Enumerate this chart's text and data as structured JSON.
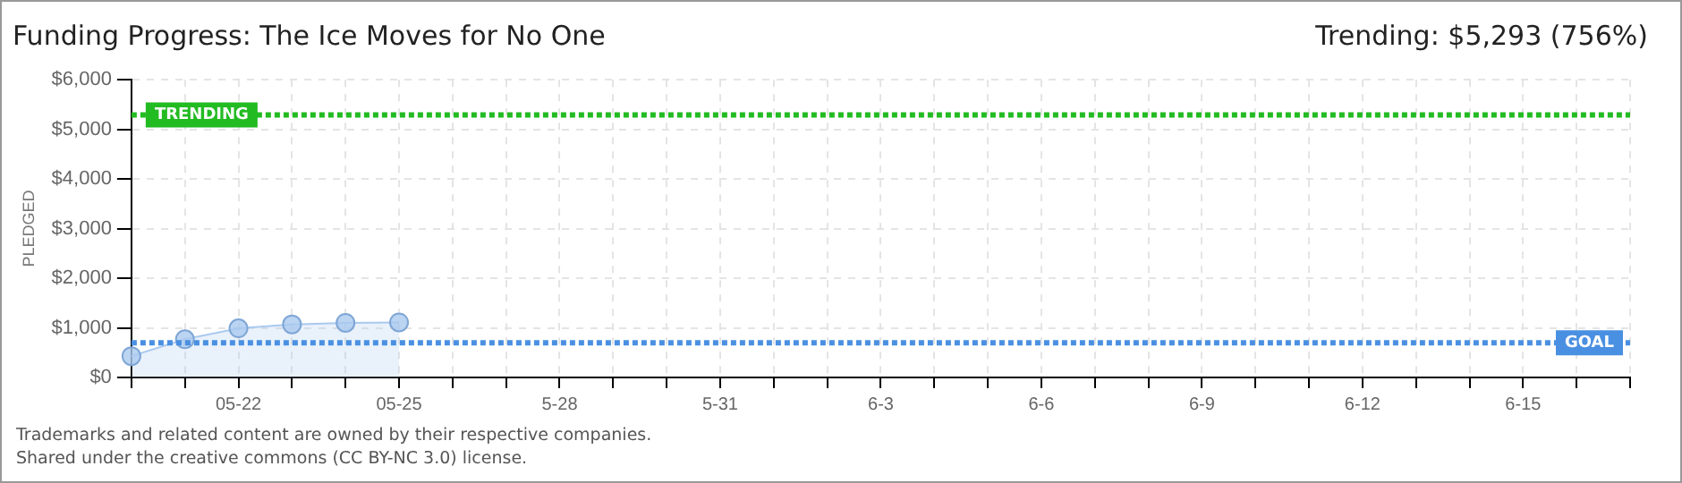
{
  "chart_data": {
    "type": "area",
    "title": "Funding Progress: The Ice Moves for No One",
    "subtitle": "Trending:  $5,293 (756%)",
    "ylabel": "PLEDGED",
    "categories": [
      null,
      null,
      "05-22",
      null,
      null,
      "05-25",
      null,
      null,
      "5-28",
      null,
      null,
      "5-31",
      null,
      null,
      "6-3",
      null,
      null,
      "6-6",
      null,
      null,
      "6-9",
      null,
      null,
      "6-12",
      null,
      null,
      "6-15",
      null,
      null
    ],
    "series": [
      {
        "color": "#a9c9ef",
        "values": [
          430,
          770,
          990,
          1070,
          1100,
          1110,
          null,
          null,
          null,
          null,
          null,
          null,
          null,
          null,
          null,
          null,
          null,
          null,
          null,
          null,
          null,
          null,
          null,
          null,
          null,
          null,
          null,
          null,
          null
        ]
      }
    ],
    "ylim": [
      0,
      6000
    ],
    "yticks": [
      {
        "value": 0,
        "label": "$0"
      },
      {
        "value": 1000,
        "label": "$1,000"
      },
      {
        "value": 2000,
        "label": "$2,000"
      },
      {
        "value": 3000,
        "label": "$3,000"
      },
      {
        "value": 4000,
        "label": "$4,000"
      },
      {
        "value": 5000,
        "label": "$5,000"
      },
      {
        "value": 6000,
        "label": "$6,000"
      }
    ],
    "ref_lines": [
      {
        "axis": "y",
        "value": 5293,
        "label": "TRENDING",
        "color": "#22bb22",
        "line_style": "dotted"
      },
      {
        "axis": "y",
        "value": 700,
        "label": "GOAL",
        "color": "#4a90e2",
        "line_style": "dotted"
      }
    ],
    "grid": true,
    "legend": false,
    "marker": "circle",
    "annotations": [
      "Trademarks and related content are owned by their respective companies.",
      "Shared under the creative commons (CC BY-NC 3.0) license."
    ]
  }
}
